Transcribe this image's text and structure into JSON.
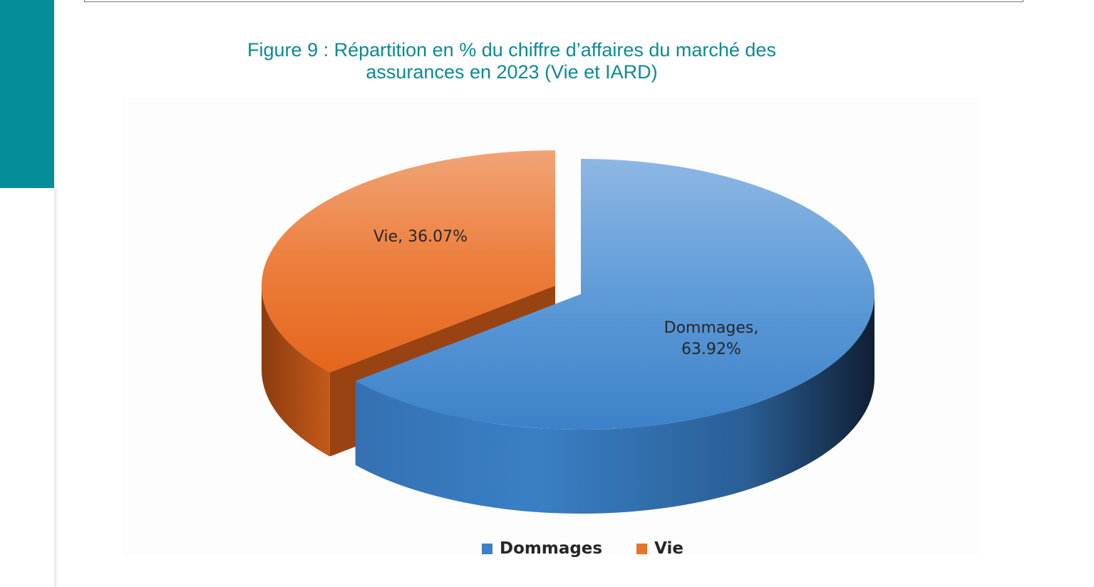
{
  "figure_title_line1": "Figure 9 : Répartition en % du chiffre d’affaires du marché des",
  "figure_title_line2": "assurances en 2023 (Vie et IARD)",
  "chart_data": {
    "type": "pie",
    "title": "Figure 9 : Répartition en % du chiffre d’affaires du marché des assurances en 2023 (Vie et IARD)",
    "style": "3D exploded pie",
    "categories": [
      "Dommages",
      "Vie"
    ],
    "values": [
      63.92,
      36.07
    ],
    "unit": "%",
    "colors": [
      "#3b80c8",
      "#e9732a"
    ],
    "data_labels": [
      {
        "category": "Dommages",
        "line1": "Dommages,",
        "line2": "63.92%"
      },
      {
        "category": "Vie",
        "line1": "Vie, 36.07%"
      }
    ],
    "legend": {
      "position": "bottom",
      "entries": [
        "Dommages",
        "Vie"
      ]
    }
  }
}
